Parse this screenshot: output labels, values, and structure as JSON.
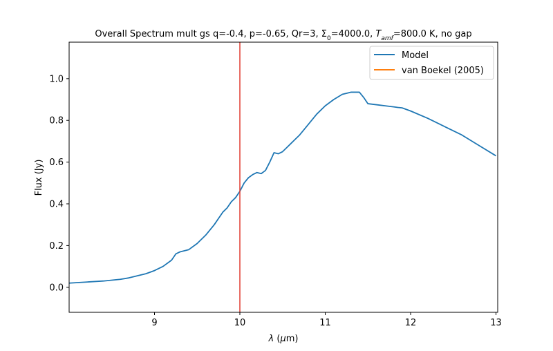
{
  "chart_data": {
    "type": "line",
    "title_parts": {
      "prefix": "Overall Spectrum mult gs q=-0.4, p=-0.65, Qr=3, Σ",
      "sigma_sub": "0",
      "mid": "=4000.0, ",
      "t_main": "T",
      "t_sub": "amf",
      "suffix": "=800.0 K, no gap"
    },
    "xlabel_parts": {
      "lambda": "λ",
      "rest": " (",
      "mu": "μ",
      "unit": "m)"
    },
    "ylabel": "Flux (Jy)",
    "xlim": [
      8.0,
      13.02
    ],
    "ylim": [
      -0.12,
      1.175
    ],
    "xticks": [
      9,
      10,
      11,
      12,
      13
    ],
    "yticks": [
      0.0,
      0.2,
      0.4,
      0.6,
      0.8,
      1.0
    ],
    "xtick_labels": [
      "9",
      "10",
      "11",
      "12",
      "13"
    ],
    "ytick_labels": [
      "0.0",
      "0.2",
      "0.4",
      "0.6",
      "0.8",
      "1.0"
    ],
    "vline": {
      "x": 10.0,
      "color": "#e03c31"
    },
    "legend_position": "upper right",
    "series": [
      {
        "name": "Model",
        "color": "#1f77b4",
        "x": [
          8.0,
          8.2,
          8.4,
          8.6,
          8.7,
          8.8,
          8.9,
          9.0,
          9.1,
          9.2,
          9.25,
          9.3,
          9.4,
          9.5,
          9.6,
          9.7,
          9.75,
          9.8,
          9.85,
          9.9,
          9.95,
          10.0,
          10.05,
          10.1,
          10.15,
          10.2,
          10.25,
          10.3,
          10.35,
          10.4,
          10.45,
          10.5,
          10.55,
          10.6,
          10.65,
          10.7,
          10.8,
          10.9,
          11.0,
          11.1,
          11.2,
          11.3,
          11.35,
          11.4,
          11.45,
          11.5,
          11.6,
          11.7,
          11.8,
          11.85,
          11.9,
          12.0,
          12.2,
          12.4,
          12.6,
          12.8,
          13.0
        ],
        "y": [
          0.02,
          0.025,
          0.03,
          0.038,
          0.045,
          0.055,
          0.065,
          0.08,
          0.1,
          0.13,
          0.16,
          0.17,
          0.18,
          0.21,
          0.25,
          0.3,
          0.33,
          0.36,
          0.38,
          0.41,
          0.43,
          0.46,
          0.5,
          0.525,
          0.54,
          0.55,
          0.545,
          0.56,
          0.6,
          0.645,
          0.64,
          0.65,
          0.67,
          0.69,
          0.71,
          0.73,
          0.78,
          0.83,
          0.87,
          0.9,
          0.925,
          0.935,
          0.935,
          0.935,
          0.91,
          0.88,
          0.875,
          0.87,
          0.865,
          0.862,
          0.86,
          0.845,
          0.81,
          0.77,
          0.73,
          0.68,
          0.63
        ]
      },
      {
        "name": "van Boekel (2005)",
        "color": "#ff7f0e",
        "x": [],
        "y": []
      }
    ]
  }
}
